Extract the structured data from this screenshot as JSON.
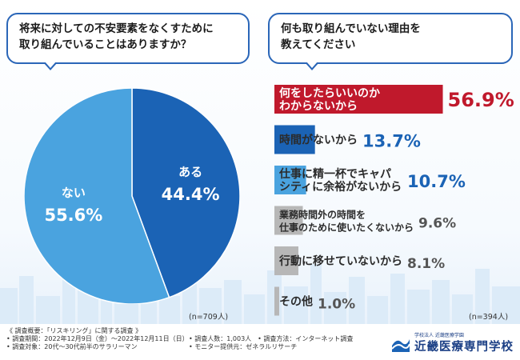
{
  "left_question": {
    "line1": "将来に対しての不安要素をなくすために",
    "line2": "取り組んでいることはありますか？"
  },
  "right_question": {
    "line1": "何も取り組んでいない理由を",
    "line2": "教えてください"
  },
  "left_n": "(n=709人)",
  "right_n": "(n=394人)",
  "footer": {
    "title": "《 調査概要：「リスキリング」に関する調査 》",
    "rows": [
      {
        "a": "• 調査期間：2022年12月9日（金）〜2022年12月11日（日）",
        "b": "• 調査人数：1,003人　• 調査方法：インターネット調査"
      },
      {
        "a": "• 調査対象：20代〜30代前半のサラリーマン",
        "b": "• モニター提供元：ゼネラルリサーチ"
      }
    ]
  },
  "logo": {
    "sub": "学校法人 近畿医療学園",
    "name": "近畿医療専門学校"
  },
  "colors": {
    "blue": "#1b63b5",
    "light_blue": "#4aa3df",
    "red": "#c0192c",
    "grey": "#b7b7b7",
    "border": "#2a66b8"
  },
  "chart_data": [
    {
      "type": "pie",
      "labels": [
        "ある",
        "ない"
      ],
      "values": [
        44.4,
        55.6
      ],
      "value_labels": [
        "44.4%",
        "55.6%"
      ],
      "colors": [
        "#1b63b5",
        "#4aa3df"
      ]
    },
    {
      "type": "bar",
      "orientation": "horizontal",
      "categories": [
        [
          "何をしたらいいのか",
          "わからないから"
        ],
        [
          "時間がないから"
        ],
        [
          "仕事に精一杯でキャパ",
          "シティに余裕がないから"
        ],
        [
          "業務時間外の時間を",
          "仕事のために使いたくないから"
        ],
        [
          "行動に移せていないから"
        ],
        [
          "その他"
        ]
      ],
      "values": [
        56.9,
        13.7,
        10.7,
        9.6,
        8.1,
        1.0
      ],
      "value_labels": [
        "56.9%",
        "13.7%",
        "10.7%",
        "9.6%",
        "8.1%",
        "1.0%"
      ],
      "colors": [
        "#c0192c",
        "#1b63b5",
        "#4aa3df",
        "#b7b7b7",
        "#b7b7b7",
        "#b7b7b7"
      ]
    }
  ]
}
